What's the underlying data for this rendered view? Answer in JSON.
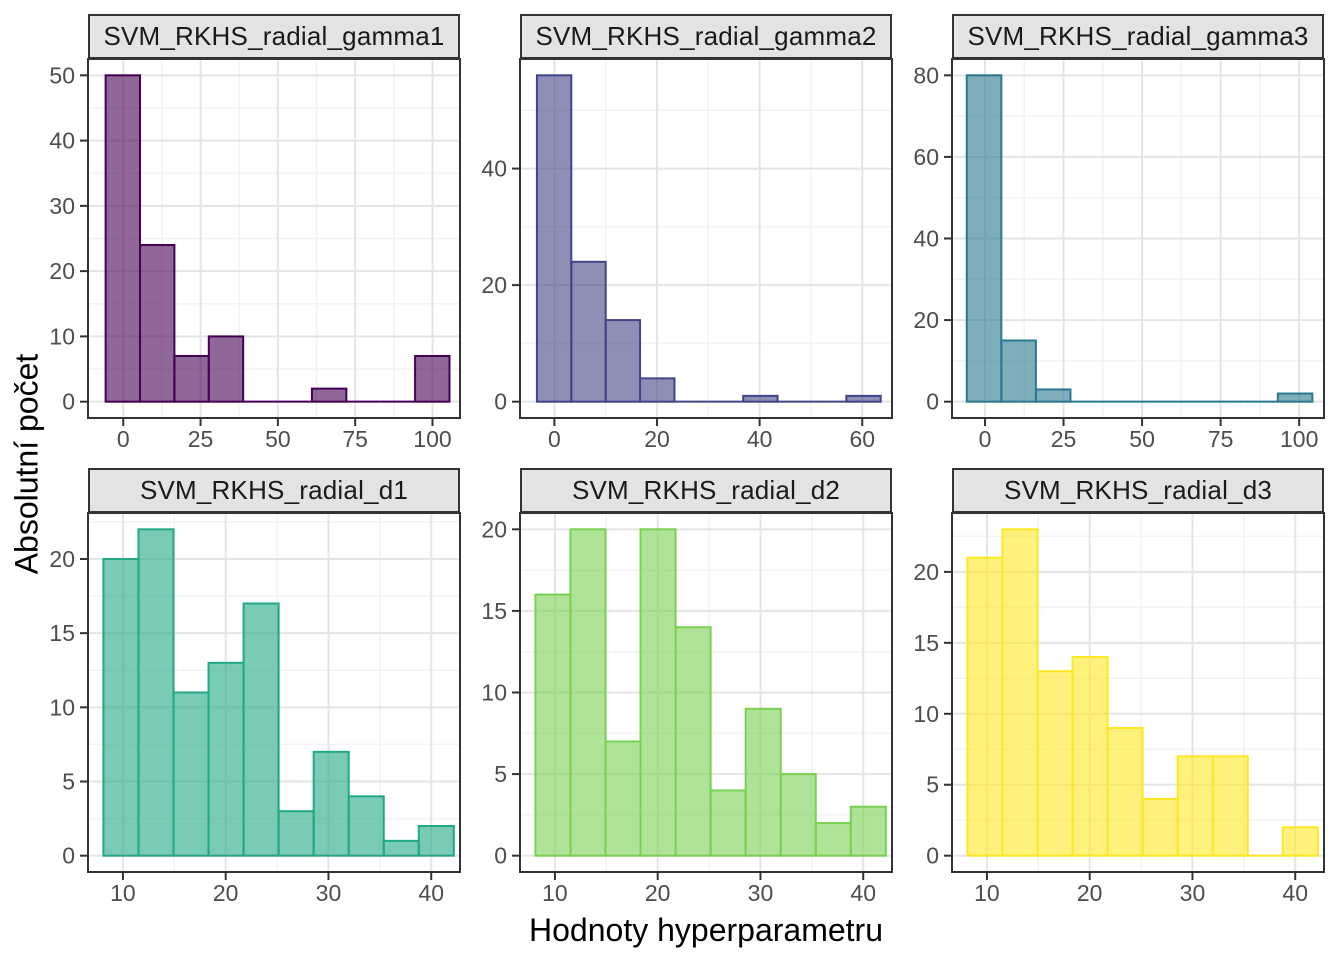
{
  "figure": {
    "xlabel": "Hodnoty hyperparametru",
    "ylabel": "Absolutní počet"
  },
  "chart_data": {
    "type": "bar",
    "subtype": "faceted-histograms",
    "layout_hint": "2 rows x 3 columns facet grid, free x and y scales, major+minor gridlines on, no legend",
    "xlabel": "Hodnoty hyperparametru",
    "ylabel": "Absolutní počet",
    "style": {
      "strip_fill": "#E3E3E3",
      "strip_text_color": "#1A1A1A",
      "panel_border": "#333333",
      "grid_major": "#E5E5E5",
      "grid_minor": "#F3F3F3",
      "tick_color": "#333333",
      "tick_label_color": "#4D4D4D",
      "axis_title_color": "#000000",
      "background": "#FFFFFF",
      "bar_fill_opacity": 0.6
    },
    "facets": [
      {
        "title": "SVM_RKHS_radial_gamma1",
        "color": "#440154",
        "bin_start": -5.7,
        "bin_width": 11.12,
        "counts": [
          50,
          24,
          7,
          10,
          0,
          0,
          2,
          0,
          0,
          7
        ],
        "x_ticks": [
          0,
          25,
          50,
          75,
          100
        ],
        "y_ticks": [
          0,
          10,
          20,
          30,
          40,
          50
        ],
        "x_domain": [
          -11.4,
          108.9
        ],
        "y_domain": [
          -2.5,
          52.5
        ]
      },
      {
        "title": "SVM_RKHS_radial_gamma2",
        "color": "#414487",
        "bin_start": -3.4,
        "bin_width": 6.7,
        "counts": [
          56,
          24,
          14,
          4,
          0,
          0,
          1,
          0,
          0,
          1
        ],
        "x_ticks": [
          0,
          20,
          40,
          60
        ],
        "y_ticks": [
          0,
          20,
          40
        ],
        "x_domain": [
          -6.7,
          65.8
        ],
        "y_domain": [
          -2.8,
          58.8
        ]
      },
      {
        "title": "SVM_RKHS_radial_gamma3",
        "color": "#2A788E",
        "bin_start": -5.8,
        "bin_width": 11.0,
        "counts": [
          80,
          15,
          3,
          0,
          0,
          0,
          0,
          0,
          0,
          2
        ],
        "x_ticks": [
          0,
          25,
          50,
          75,
          100
        ],
        "y_ticks": [
          0,
          20,
          40,
          60,
          80
        ],
        "x_domain": [
          -10.5,
          107.9
        ],
        "y_domain": [
          -4,
          84
        ]
      },
      {
        "title": "SVM_RKHS_radial_d1",
        "color": "#22A884",
        "bin_start": 8.1,
        "bin_width": 3.41,
        "counts": [
          20,
          22,
          11,
          13,
          17,
          3,
          7,
          4,
          1,
          2
        ],
        "x_ticks": [
          10,
          20,
          30,
          40
        ],
        "y_ticks": [
          0,
          5,
          10,
          15,
          20
        ],
        "x_domain": [
          6.6,
          42.8
        ],
        "y_domain": [
          -1.1,
          23.1
        ]
      },
      {
        "title": "SVM_RKHS_radial_d2",
        "color": "#7AD151",
        "bin_start": 8.1,
        "bin_width": 3.41,
        "counts": [
          16,
          20,
          7,
          20,
          14,
          4,
          9,
          5,
          2,
          3
        ],
        "x_ticks": [
          10,
          20,
          30,
          40
        ],
        "y_ticks": [
          0,
          5,
          10,
          15,
          20
        ],
        "x_domain": [
          6.6,
          42.8
        ],
        "y_domain": [
          -1.0,
          21.0
        ]
      },
      {
        "title": "SVM_RKHS_radial_d3",
        "color": "#FDE725",
        "bin_start": 8.1,
        "bin_width": 3.41,
        "counts": [
          21,
          23,
          13,
          14,
          9,
          4,
          7,
          7,
          0,
          2
        ],
        "x_ticks": [
          10,
          20,
          30,
          40
        ],
        "y_ticks": [
          0,
          5,
          10,
          15,
          20
        ],
        "x_domain": [
          6.6,
          42.8
        ],
        "y_domain": [
          -1.15,
          24.15
        ]
      }
    ]
  }
}
